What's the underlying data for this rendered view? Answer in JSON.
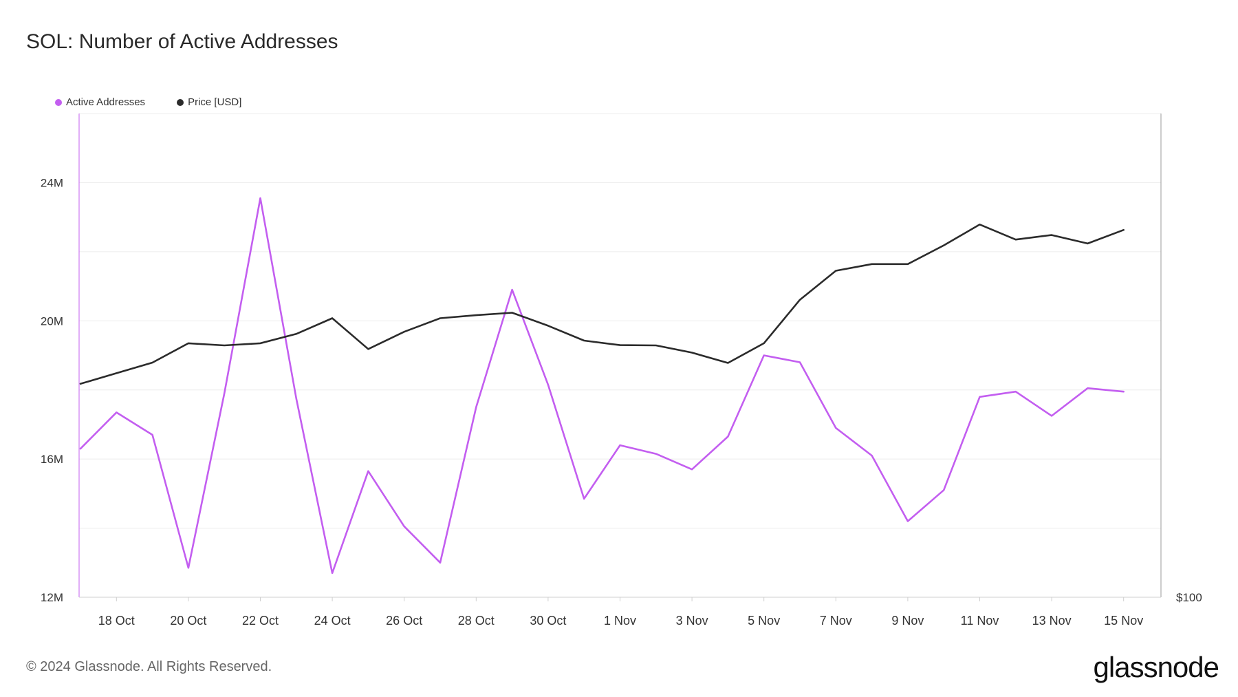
{
  "header": {
    "title": "SOL: Number of Active Addresses"
  },
  "footer": {
    "copyright": "© 2024 Glassnode. All Rights Reserved.",
    "brand": "glassnode"
  },
  "colors": {
    "active": "#c35ef0",
    "price": "#2b2b2b",
    "grid": "#ececec",
    "axis": "#cfcfcf"
  },
  "chart_data": {
    "type": "line",
    "title": "SOL: Number of Active Addresses",
    "legend": [
      {
        "name": "Active Addresses",
        "color": "#c35ef0"
      },
      {
        "name": "Price [USD]",
        "color": "#2b2b2b"
      }
    ],
    "x_tick_labels": [
      "18 Oct",
      "20 Oct",
      "22 Oct",
      "24 Oct",
      "26 Oct",
      "28 Oct",
      "30 Oct",
      "1 Nov",
      "3 Nov",
      "5 Nov",
      "7 Nov",
      "9 Nov",
      "11 Nov",
      "13 Nov",
      "15 Nov"
    ],
    "x": [
      "17 Oct",
      "18 Oct",
      "19 Oct",
      "20 Oct",
      "21 Oct",
      "22 Oct",
      "23 Oct",
      "24 Oct",
      "25 Oct",
      "26 Oct",
      "27 Oct",
      "28 Oct",
      "29 Oct",
      "30 Oct",
      "31 Oct",
      "1 Nov",
      "2 Nov",
      "3 Nov",
      "4 Nov",
      "5 Nov",
      "6 Nov",
      "7 Nov",
      "8 Nov",
      "9 Nov",
      "10 Nov",
      "11 Nov",
      "12 Nov",
      "13 Nov",
      "14 Nov",
      "15 Nov"
    ],
    "left_axis": {
      "ylim": [
        12000000,
        26000000
      ],
      "ticks": [
        12000000,
        16000000,
        20000000,
        24000000
      ],
      "tick_labels": [
        "12M",
        "16M",
        "20M",
        "24M"
      ]
    },
    "right_axis": {
      "min_label": "$100",
      "min": 100,
      "max": 260
    },
    "series": [
      {
        "name": "Active Addresses",
        "axis": "left",
        "values": [
          16300000,
          17350000,
          16700000,
          12850000,
          17900000,
          23550000,
          17750000,
          12700000,
          15650000,
          14050000,
          13000000,
          17500000,
          20900000,
          18150000,
          14850000,
          16400000,
          16150000,
          15700000,
          16650000,
          19000000,
          18800000,
          16900000,
          16100000,
          14200000,
          15100000,
          17800000,
          17950000,
          17250000,
          18050000,
          17950000
        ]
      },
      {
        "name": "Price [USD]",
        "axis": "right",
        "values": [
          170.6,
          174.1,
          177.6,
          184.0,
          183.3,
          184.0,
          187.1,
          192.3,
          182.1,
          187.8,
          192.3,
          193.3,
          194.1,
          189.8,
          184.9,
          183.4,
          183.3,
          180.9,
          177.5,
          184.0,
          198.4,
          208.0,
          210.2,
          210.2,
          216.4,
          223.3,
          218.3,
          219.8,
          217.0,
          221.5
        ]
      }
    ]
  }
}
